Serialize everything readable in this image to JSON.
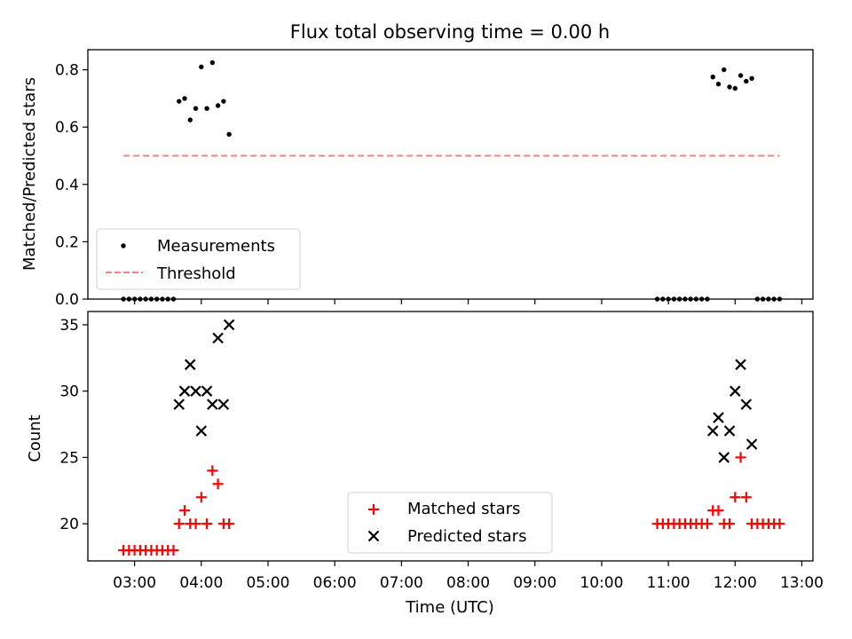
{
  "figure": {
    "title": "Flux total observing time = 0.00 h",
    "xlabel": "Time (UTC)"
  },
  "chart_data": [
    {
      "type": "scatter",
      "panel": "top",
      "ylabel": "Matched/Predicted stars",
      "xlim": [
        "02:18",
        "13:10"
      ],
      "ylim": [
        0.0,
        0.87
      ],
      "yticks": [
        0.0,
        0.2,
        0.4,
        0.6,
        0.8
      ],
      "ytick_labels": [
        "0.0",
        "0.2",
        "0.4",
        "0.6",
        "0.8"
      ],
      "legend_position": "lower-left",
      "series": [
        {
          "name": "Measurements",
          "marker": "dot",
          "color": "#000000",
          "points": [
            [
              "02:50",
              0.0
            ],
            [
              "02:55",
              0.0
            ],
            [
              "03:00",
              0.0
            ],
            [
              "03:05",
              0.0
            ],
            [
              "03:10",
              0.0
            ],
            [
              "03:15",
              0.0
            ],
            [
              "03:20",
              0.0
            ],
            [
              "03:25",
              0.0
            ],
            [
              "03:30",
              0.0
            ],
            [
              "03:35",
              0.0
            ],
            [
              "03:40",
              0.69
            ],
            [
              "03:45",
              0.7
            ],
            [
              "03:50",
              0.625
            ],
            [
              "03:55",
              0.665
            ],
            [
              "04:00",
              0.81
            ],
            [
              "04:05",
              0.665
            ],
            [
              "04:10",
              0.825
            ],
            [
              "04:15",
              0.675
            ],
            [
              "04:20",
              0.69
            ],
            [
              "04:25",
              0.575
            ],
            [
              "10:50",
              0.0
            ],
            [
              "10:55",
              0.0
            ],
            [
              "11:00",
              0.0
            ],
            [
              "11:05",
              0.0
            ],
            [
              "11:10",
              0.0
            ],
            [
              "11:15",
              0.0
            ],
            [
              "11:20",
              0.0
            ],
            [
              "11:25",
              0.0
            ],
            [
              "11:30",
              0.0
            ],
            [
              "11:35",
              0.0
            ],
            [
              "11:40",
              0.775
            ],
            [
              "11:45",
              0.75
            ],
            [
              "11:50",
              0.8
            ],
            [
              "11:55",
              0.74
            ],
            [
              "12:00",
              0.735
            ],
            [
              "12:05",
              0.78
            ],
            [
              "12:10",
              0.76
            ],
            [
              "12:15",
              0.77
            ],
            [
              "12:20",
              0.0
            ],
            [
              "12:25",
              0.0
            ],
            [
              "12:30",
              0.0
            ],
            [
              "12:35",
              0.0
            ],
            [
              "12:40",
              0.0
            ]
          ]
        },
        {
          "name": "Threshold",
          "marker": "dashed-line",
          "color": "#ff7f7f",
          "points": [
            [
              "02:50",
              0.5
            ],
            [
              "12:40",
              0.5
            ]
          ]
        }
      ]
    },
    {
      "type": "scatter",
      "panel": "bottom",
      "ylabel": "Count",
      "xlim": [
        "02:18",
        "13:10"
      ],
      "ylim": [
        17.2,
        36.0
      ],
      "yticks": [
        20,
        25,
        30,
        35
      ],
      "ytick_labels": [
        "20",
        "25",
        "30",
        "35"
      ],
      "xticks": [
        "03:00",
        "04:00",
        "05:00",
        "06:00",
        "07:00",
        "08:00",
        "09:00",
        "10:00",
        "11:00",
        "12:00",
        "13:00"
      ],
      "xtick_labels": [
        "03:00",
        "04:00",
        "05:00",
        "06:00",
        "07:00",
        "08:00",
        "09:00",
        "10:00",
        "11:00",
        "12:00",
        "13:00"
      ],
      "legend_position": "lower-center",
      "series": [
        {
          "name": "Matched stars",
          "marker": "plus",
          "color": "#ff0000",
          "points": [
            [
              "02:50",
              18
            ],
            [
              "02:55",
              18
            ],
            [
              "03:00",
              18
            ],
            [
              "03:05",
              18
            ],
            [
              "03:10",
              18
            ],
            [
              "03:15",
              18
            ],
            [
              "03:20",
              18
            ],
            [
              "03:25",
              18
            ],
            [
              "03:30",
              18
            ],
            [
              "03:35",
              18
            ],
            [
              "03:40",
              20
            ],
            [
              "03:45",
              21
            ],
            [
              "03:50",
              20
            ],
            [
              "03:55",
              20
            ],
            [
              "04:00",
              22
            ],
            [
              "04:05",
              20
            ],
            [
              "04:10",
              24
            ],
            [
              "04:15",
              23
            ],
            [
              "04:20",
              20
            ],
            [
              "04:25",
              20
            ],
            [
              "10:50",
              20
            ],
            [
              "10:55",
              20
            ],
            [
              "11:00",
              20
            ],
            [
              "11:05",
              20
            ],
            [
              "11:10",
              20
            ],
            [
              "11:15",
              20
            ],
            [
              "11:20",
              20
            ],
            [
              "11:25",
              20
            ],
            [
              "11:30",
              20
            ],
            [
              "11:35",
              20
            ],
            [
              "11:40",
              21
            ],
            [
              "11:45",
              21
            ],
            [
              "11:50",
              20
            ],
            [
              "11:55",
              20
            ],
            [
              "12:00",
              22
            ],
            [
              "12:05",
              25
            ],
            [
              "12:10",
              22
            ],
            [
              "12:15",
              20
            ],
            [
              "12:20",
              20
            ],
            [
              "12:25",
              20
            ],
            [
              "12:30",
              20
            ],
            [
              "12:35",
              20
            ],
            [
              "12:40",
              20
            ]
          ]
        },
        {
          "name": "Predicted stars",
          "marker": "x",
          "color": "#000000",
          "points": [
            [
              "03:40",
              29
            ],
            [
              "03:45",
              30
            ],
            [
              "03:50",
              32
            ],
            [
              "03:55",
              30
            ],
            [
              "04:00",
              27
            ],
            [
              "04:05",
              30
            ],
            [
              "04:10",
              29
            ],
            [
              "04:15",
              34
            ],
            [
              "04:20",
              29
            ],
            [
              "04:25",
              35
            ],
            [
              "11:40",
              27
            ],
            [
              "11:45",
              28
            ],
            [
              "11:50",
              25
            ],
            [
              "11:55",
              27
            ],
            [
              "12:00",
              30
            ],
            [
              "12:05",
              32
            ],
            [
              "12:10",
              29
            ],
            [
              "12:15",
              26
            ]
          ]
        }
      ]
    }
  ]
}
